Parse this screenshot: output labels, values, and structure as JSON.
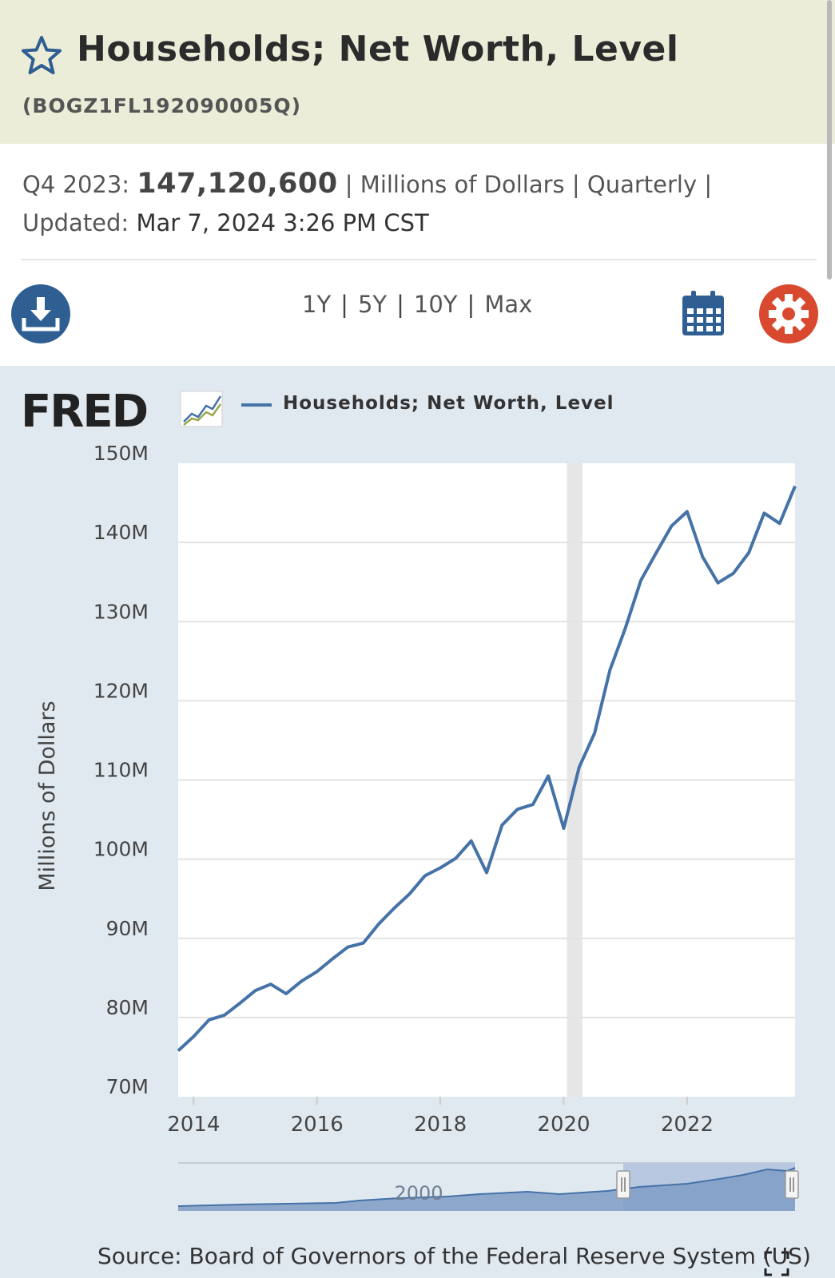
{
  "header": {
    "title": "Households; Net Worth, Level",
    "series_id": "(BOGZ1FL192090005Q)",
    "favorite_icon": "star-icon"
  },
  "meta": {
    "period_label": "Q4 2023:",
    "value": "147,120,600",
    "units": "Millions of Dollars",
    "frequency": "Quarterly",
    "separator": "|",
    "updated_label": "Updated:",
    "updated_value": "Mar 7, 2024 3:26 PM CST"
  },
  "toolbar": {
    "download_icon": "download-icon",
    "ranges": [
      "1Y",
      "5Y",
      "10Y",
      "Max"
    ],
    "calendar_icon": "calendar-icon",
    "settings_icon": "gear-icon"
  },
  "colors": {
    "title_band": "#ecedd8",
    "chart_panel": "#e1e9f0",
    "series": "#4572a7",
    "accent_blue": "#2f5f92",
    "settings_red": "#d9492f"
  },
  "chart_data": {
    "type": "line",
    "logo": "FRED",
    "legend": [
      "Households; Net Worth, Level"
    ],
    "ylabel": "Millions of Dollars",
    "xlabel": "",
    "ylim": [
      70,
      150
    ],
    "y_ticks": [
      "150M",
      "140M",
      "130M",
      "120M",
      "110M",
      "100M",
      "90M",
      "80M",
      "70M"
    ],
    "x_ticks": [
      "2014",
      "2016",
      "2018",
      "2020",
      "2022"
    ],
    "recession_shading": [
      "2020-Q1",
      "2020-Q2"
    ],
    "navigator": {
      "label": "2000",
      "selected_from": "2013-Q4",
      "selected_to": "2023-Q4"
    },
    "grid": true,
    "legend_position": "top",
    "series": [
      {
        "name": "Households; Net Worth, Level",
        "x": [
          "2013-Q4",
          "2014-Q1",
          "2014-Q2",
          "2014-Q3",
          "2014-Q4",
          "2015-Q1",
          "2015-Q2",
          "2015-Q3",
          "2015-Q4",
          "2016-Q1",
          "2016-Q2",
          "2016-Q3",
          "2016-Q4",
          "2017-Q1",
          "2017-Q2",
          "2017-Q3",
          "2017-Q4",
          "2018-Q1",
          "2018-Q2",
          "2018-Q3",
          "2018-Q4",
          "2019-Q1",
          "2019-Q2",
          "2019-Q3",
          "2019-Q4",
          "2020-Q1",
          "2020-Q2",
          "2020-Q3",
          "2020-Q4",
          "2021-Q1",
          "2021-Q2",
          "2021-Q3",
          "2021-Q4",
          "2022-Q1",
          "2022-Q2",
          "2022-Q3",
          "2022-Q4",
          "2023-Q1",
          "2023-Q2",
          "2023-Q3",
          "2023-Q4"
        ],
        "values": [
          75.8,
          77.6,
          79.7,
          80.3,
          81.8,
          83.4,
          84.2,
          83.0,
          84.6,
          85.8,
          87.4,
          88.9,
          89.4,
          91.8,
          93.8,
          95.6,
          97.9,
          98.9,
          100.1,
          102.3,
          98.3,
          104.3,
          106.3,
          106.9,
          110.5,
          103.9,
          111.6,
          115.9,
          123.9,
          129.2,
          135.2,
          138.7,
          142.1,
          143.9,
          138.2,
          134.9,
          136.1,
          138.7,
          143.7,
          142.4,
          147.1
        ]
      }
    ]
  },
  "footer": {
    "source": "Source: Board of Governors of the Federal Reserve System (US)"
  }
}
